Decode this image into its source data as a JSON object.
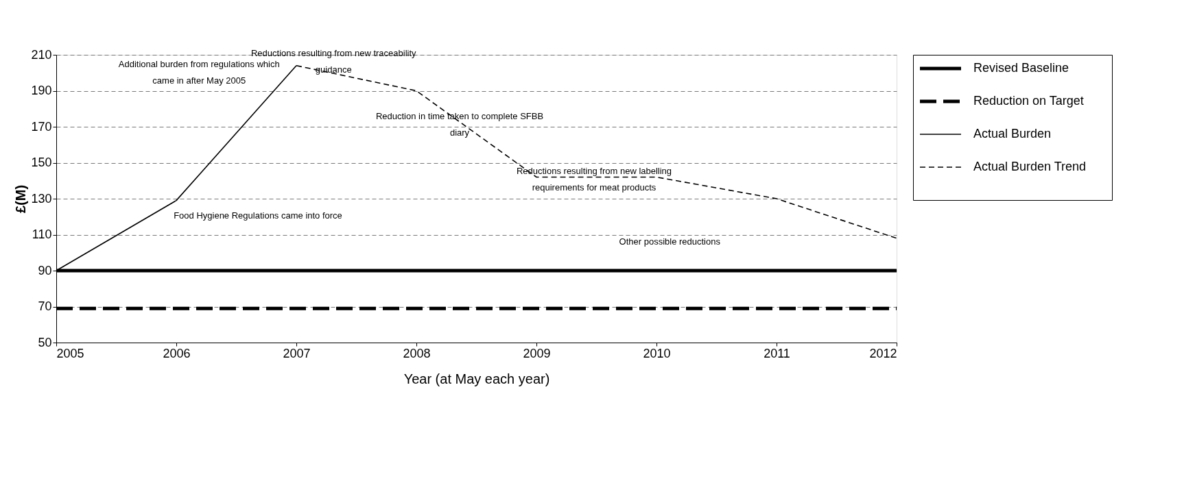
{
  "chart_data": {
    "type": "line",
    "xlabel": "Year (at May each year)",
    "ylabel": "£(M)",
    "xlim": [
      2005,
      2012
    ],
    "xticks": [
      2005,
      2006,
      2007,
      2008,
      2009,
      2010,
      2011,
      2012
    ],
    "ylim": [
      50,
      210
    ],
    "yticks": [
      50,
      70,
      90,
      110,
      130,
      150,
      170,
      190,
      210
    ],
    "grid": "y",
    "legend": "right",
    "marker": "none",
    "series": [
      {
        "name": "Revised Baseline",
        "color": "#000000",
        "line_style": "solid",
        "x": [
          2005,
          2012
        ],
        "values": [
          90,
          90
        ]
      },
      {
        "name": "Reduction on Target",
        "color": "#000000",
        "line_style": "dashed",
        "x": [
          2005,
          2012
        ],
        "values": [
          69,
          69
        ]
      },
      {
        "name": "Actual Burden",
        "color": "#000000",
        "line_style": "solid",
        "x": [
          2005,
          2006,
          2007
        ],
        "values": [
          90,
          129,
          204
        ]
      },
      {
        "name": "Actual Burden Trend",
        "color": "#000000",
        "line_style": "dashed",
        "x": [
          2007,
          2008,
          2009,
          2010,
          2011,
          2012
        ],
        "values": [
          204,
          190,
          142,
          142,
          130,
          108
        ]
      }
    ],
    "annotations": [
      "Additional burden from regulations which\ncame in after May 2005",
      "Reductions resulting from new traceability\nguidance",
      "Reduction in time taken to complete SFBB\ndiary",
      "Reductions resulting from new labelling\nrequirements for meat products",
      "Food Hygiene Regulations came into force",
      "Other possible reductions"
    ]
  }
}
